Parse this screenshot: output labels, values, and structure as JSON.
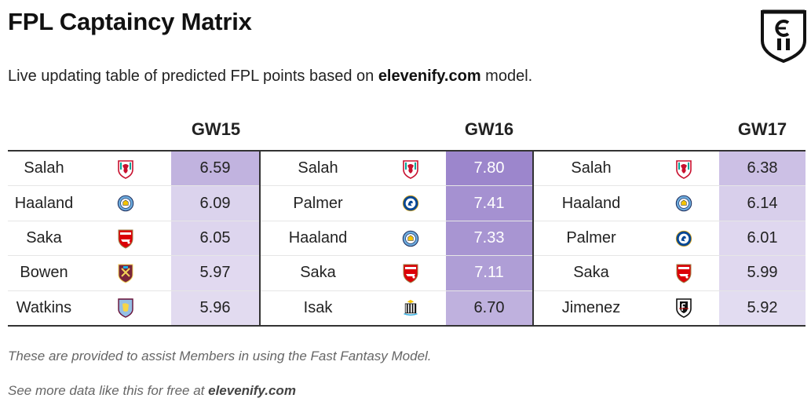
{
  "title": "FPL Captaincy Matrix",
  "subtitle": {
    "prefix": "Live updating table of predicted FPL points based on ",
    "site": "elevenify.com",
    "suffix": " model."
  },
  "logo_icon": "elevenify-shield-logo",
  "gameweeks": [
    {
      "label": "GW15",
      "rows": [
        {
          "player": "Salah",
          "club": "liverpool-crest-icon",
          "points": "6.59",
          "level": 0.58
        },
        {
          "player": "Haaland",
          "club": "man-city-crest-icon",
          "points": "6.09",
          "level": 0.28
        },
        {
          "player": "Saka",
          "club": "arsenal-crest-icon",
          "points": "6.05",
          "level": 0.26
        },
        {
          "player": "Bowen",
          "club": "west-ham-crest-icon",
          "points": "5.97",
          "level": 0.22
        },
        {
          "player": "Watkins",
          "club": "aston-villa-crest-icon",
          "points": "5.96",
          "level": 0.21
        }
      ]
    },
    {
      "label": "GW16",
      "rows": [
        {
          "player": "Salah",
          "club": "liverpool-crest-icon",
          "points": "7.80",
          "level": 1.0
        },
        {
          "player": "Palmer",
          "club": "chelsea-crest-icon",
          "points": "7.41",
          "level": 0.9
        },
        {
          "player": "Haaland",
          "club": "man-city-crest-icon",
          "points": "7.33",
          "level": 0.86
        },
        {
          "player": "Saka",
          "club": "arsenal-crest-icon",
          "points": "7.11",
          "level": 0.78
        },
        {
          "player": "Isak",
          "club": "newcastle-crest-icon",
          "points": "6.70",
          "level": 0.6
        }
      ]
    },
    {
      "label": "GW17",
      "rows": [
        {
          "player": "Salah",
          "club": "liverpool-crest-icon",
          "points": "6.38",
          "level": 0.46
        },
        {
          "player": "Haaland",
          "club": "man-city-crest-icon",
          "points": "6.14",
          "level": 0.32
        },
        {
          "player": "Palmer",
          "club": "chelsea-crest-icon",
          "points": "6.01",
          "level": 0.24
        },
        {
          "player": "Saka",
          "club": "arsenal-crest-icon",
          "points": "5.99",
          "level": 0.23
        },
        {
          "player": "Jimenez",
          "club": "fulham-crest-icon",
          "points": "5.92",
          "level": 0.2
        }
      ]
    }
  ],
  "footer": {
    "note": "These are provided to assist Members in using the Fast Fantasy Model.",
    "more_prefix": "See more data like this for free at ",
    "more_site": "elevenify.com"
  },
  "colors": {
    "heat_max": "#9c86cc",
    "heat_min": "#f4f1fa",
    "rule": "#333333"
  }
}
